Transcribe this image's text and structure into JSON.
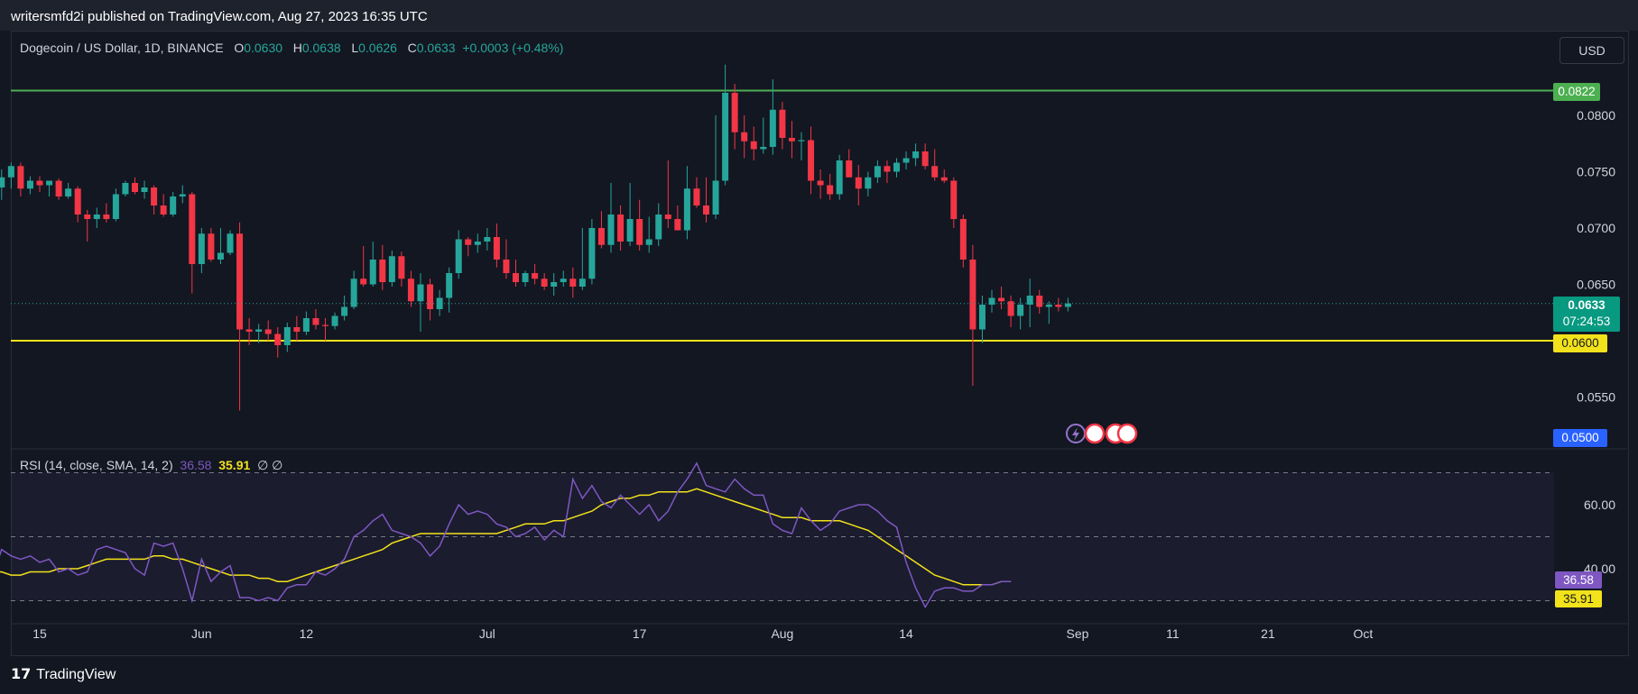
{
  "header": {
    "publisher": "writersmfd2i published on TradingView.com, Aug 27, 2023 16:35 UTC"
  },
  "legend": {
    "symbol": "Dogecoin / US Dollar, 1D, BINANCE",
    "o_label": "O",
    "o": "0.0630",
    "h_label": "H",
    "h": "0.0638",
    "l_label": "L",
    "l": "0.0626",
    "c_label": "C",
    "c": "0.0633",
    "change": "+0.0003 (+0.48%)"
  },
  "currency_button": "USD",
  "rsi_legend": {
    "label": "RSI (14, close, SMA, 14, 2)",
    "rsi": "36.58",
    "sma": "35.91",
    "extra": "∅  ∅"
  },
  "price_badges": {
    "resistance": "0.0822",
    "current": "0.0633",
    "countdown": "07:24:53",
    "support": "0.0600",
    "bottom": "0.0500"
  },
  "rsi_badges": {
    "rsi": "36.58",
    "sma": "35.91"
  },
  "footer": {
    "logo": "17",
    "brand": "TradingView"
  },
  "colors": {
    "up": "#26a69a",
    "down": "#f23645",
    "resistance": "#4caf50",
    "support": "#f2e21b",
    "rsi": "#7e57c2",
    "rsi_sma": "#f2e21b"
  },
  "chart_data": {
    "type": "candlestick",
    "symbol": "DOGEUSD",
    "interval": "1D",
    "y_ticks": [
      "0.0800",
      "0.0750",
      "0.0700",
      "0.0650",
      "0.0550"
    ],
    "x_ticks": [
      "15",
      "Jun",
      "12",
      "Jul",
      "17",
      "Aug",
      "14",
      "Sep",
      "11",
      "21",
      "Oct"
    ],
    "x_dates": [
      "2023-05-15",
      "2023-06-01",
      "2023-06-12",
      "2023-07-01",
      "2023-07-17",
      "2023-08-01",
      "2023-08-14",
      "2023-09-01",
      "2023-09-11",
      "2023-09-21",
      "2023-10-01"
    ],
    "horizontal_lines": [
      {
        "value": 0.0822,
        "color": "#4caf50"
      },
      {
        "value": 0.06,
        "color": "#f2e21b"
      }
    ],
    "candles": [
      [
        0.0728,
        0.0735,
        0.07,
        0.0725
      ],
      [
        0.0725,
        0.0738,
        0.0715,
        0.073
      ],
      [
        0.073,
        0.0735,
        0.0712,
        0.0718
      ],
      [
        0.0718,
        0.073,
        0.0715,
        0.0725
      ],
      [
        0.0725,
        0.0738,
        0.0718,
        0.072
      ],
      [
        0.072,
        0.0742,
        0.0716,
        0.0736
      ],
      [
        0.0736,
        0.0752,
        0.0725,
        0.0745
      ],
      [
        0.0745,
        0.0758,
        0.0735,
        0.0755
      ],
      [
        0.0755,
        0.0758,
        0.0728,
        0.0735
      ],
      [
        0.0735,
        0.0746,
        0.073,
        0.0742
      ],
      [
        0.0742,
        0.0746,
        0.0732,
        0.0738
      ],
      [
        0.0738,
        0.0742,
        0.0728,
        0.0742
      ],
      [
        0.0742,
        0.0744,
        0.0725,
        0.0728
      ],
      [
        0.0728,
        0.074,
        0.0726,
        0.0735
      ],
      [
        0.0735,
        0.0737,
        0.0705,
        0.0712
      ],
      [
        0.0712,
        0.0716,
        0.0688,
        0.0708
      ],
      [
        0.0708,
        0.0718,
        0.07,
        0.0712
      ],
      [
        0.0712,
        0.0722,
        0.0705,
        0.0708
      ],
      [
        0.0708,
        0.0735,
        0.0706,
        0.073
      ],
      [
        0.073,
        0.0742,
        0.0728,
        0.074
      ],
      [
        0.074,
        0.0745,
        0.073,
        0.0732
      ],
      [
        0.0732,
        0.0742,
        0.0726,
        0.0736
      ],
      [
        0.0736,
        0.0738,
        0.0712,
        0.072
      ],
      [
        0.072,
        0.073,
        0.071,
        0.0712
      ],
      [
        0.0712,
        0.0732,
        0.071,
        0.0728
      ],
      [
        0.0728,
        0.0738,
        0.0722,
        0.073
      ],
      [
        0.073,
        0.0732,
        0.0642,
        0.0668
      ],
      [
        0.0668,
        0.07,
        0.066,
        0.0695
      ],
      [
        0.0695,
        0.07,
        0.067,
        0.0672
      ],
      [
        0.0672,
        0.07,
        0.0668,
        0.0678
      ],
      [
        0.0678,
        0.0698,
        0.0676,
        0.0695
      ],
      [
        0.0695,
        0.0705,
        0.0538,
        0.061
      ],
      [
        0.061,
        0.062,
        0.0596,
        0.0608
      ],
      [
        0.0608,
        0.0615,
        0.0598,
        0.061
      ],
      [
        0.061,
        0.0618,
        0.06,
        0.0606
      ],
      [
        0.0606,
        0.0612,
        0.0585,
        0.0596
      ],
      [
        0.0596,
        0.0616,
        0.059,
        0.0612
      ],
      [
        0.0612,
        0.0622,
        0.06,
        0.0608
      ],
      [
        0.0608,
        0.0626,
        0.0605,
        0.062
      ],
      [
        0.062,
        0.0628,
        0.061,
        0.0614
      ],
      [
        0.0614,
        0.062,
        0.06,
        0.0613
      ],
      [
        0.0613,
        0.0625,
        0.061,
        0.0622
      ],
      [
        0.0622,
        0.064,
        0.0618,
        0.063
      ],
      [
        0.063,
        0.0662,
        0.0628,
        0.0655
      ],
      [
        0.0655,
        0.0684,
        0.0648,
        0.065
      ],
      [
        0.065,
        0.0688,
        0.0648,
        0.0672
      ],
      [
        0.0672,
        0.0685,
        0.0645,
        0.0652
      ],
      [
        0.0652,
        0.068,
        0.0648,
        0.0675
      ],
      [
        0.0675,
        0.0679,
        0.0648,
        0.0655
      ],
      [
        0.0655,
        0.0662,
        0.063,
        0.0635
      ],
      [
        0.0635,
        0.066,
        0.0608,
        0.065
      ],
      [
        0.065,
        0.0655,
        0.0618,
        0.0628
      ],
      [
        0.0628,
        0.0645,
        0.0622,
        0.0638
      ],
      [
        0.0638,
        0.0665,
        0.0625,
        0.066
      ],
      [
        0.066,
        0.0698,
        0.0655,
        0.069
      ],
      [
        0.069,
        0.0692,
        0.0675,
        0.0685
      ],
      [
        0.0685,
        0.0695,
        0.0678,
        0.0688
      ],
      [
        0.0688,
        0.07,
        0.068,
        0.0692
      ],
      [
        0.0692,
        0.0704,
        0.0665,
        0.0672
      ],
      [
        0.0672,
        0.069,
        0.0655,
        0.066
      ],
      [
        0.066,
        0.0672,
        0.0648,
        0.0652
      ],
      [
        0.0652,
        0.0662,
        0.0648,
        0.066
      ],
      [
        0.066,
        0.0668,
        0.065,
        0.0655
      ],
      [
        0.0655,
        0.066,
        0.0645,
        0.0648
      ],
      [
        0.0648,
        0.066,
        0.064,
        0.0652
      ],
      [
        0.0652,
        0.0662,
        0.0648,
        0.0655
      ],
      [
        0.0655,
        0.0665,
        0.0638,
        0.0648
      ],
      [
        0.0648,
        0.07,
        0.0645,
        0.0655
      ],
      [
        0.0655,
        0.0708,
        0.065,
        0.07
      ],
      [
        0.07,
        0.0715,
        0.0682,
        0.0685
      ],
      [
        0.0685,
        0.074,
        0.0678,
        0.0712
      ],
      [
        0.0712,
        0.072,
        0.068,
        0.0688
      ],
      [
        0.0688,
        0.074,
        0.0684,
        0.0708
      ],
      [
        0.0708,
        0.0725,
        0.068,
        0.0685
      ],
      [
        0.0685,
        0.071,
        0.0678,
        0.069
      ],
      [
        0.069,
        0.0722,
        0.0684,
        0.0712
      ],
      [
        0.0712,
        0.076,
        0.07,
        0.0708
      ],
      [
        0.0708,
        0.072,
        0.0698,
        0.0698
      ],
      [
        0.0698,
        0.0755,
        0.069,
        0.0735
      ],
      [
        0.0735,
        0.0745,
        0.0718,
        0.072
      ],
      [
        0.072,
        0.0745,
        0.0705,
        0.0712
      ],
      [
        0.0712,
        0.08,
        0.0708,
        0.0742
      ],
      [
        0.0742,
        0.0845,
        0.0738,
        0.082
      ],
      [
        0.082,
        0.0828,
        0.077,
        0.0785
      ],
      [
        0.0785,
        0.08,
        0.0762,
        0.0777
      ],
      [
        0.0777,
        0.079,
        0.076,
        0.077
      ],
      [
        0.077,
        0.0798,
        0.0766,
        0.0772
      ],
      [
        0.0772,
        0.0832,
        0.0765,
        0.0805
      ],
      [
        0.0805,
        0.0812,
        0.077,
        0.078
      ],
      [
        0.078,
        0.0795,
        0.0762,
        0.0777
      ],
      [
        0.0777,
        0.0785,
        0.076,
        0.0778
      ],
      [
        0.0778,
        0.079,
        0.073,
        0.0742
      ],
      [
        0.0742,
        0.0752,
        0.0726,
        0.0738
      ],
      [
        0.0738,
        0.0748,
        0.0725,
        0.073
      ],
      [
        0.073,
        0.0765,
        0.0725,
        0.076
      ],
      [
        0.076,
        0.077,
        0.0745,
        0.0745
      ],
      [
        0.0745,
        0.0756,
        0.072,
        0.0735
      ],
      [
        0.0735,
        0.075,
        0.0728,
        0.0745
      ],
      [
        0.0745,
        0.076,
        0.074,
        0.0755
      ],
      [
        0.0755,
        0.076,
        0.074,
        0.075
      ],
      [
        0.075,
        0.0762,
        0.0745,
        0.0758
      ],
      [
        0.0758,
        0.0768,
        0.0752,
        0.0762
      ],
      [
        0.0762,
        0.0775,
        0.0755,
        0.0768
      ],
      [
        0.0768,
        0.0775,
        0.0752,
        0.0755
      ],
      [
        0.0755,
        0.077,
        0.0742,
        0.0745
      ],
      [
        0.0745,
        0.0752,
        0.074,
        0.0742
      ],
      [
        0.0742,
        0.0745,
        0.07,
        0.0708
      ],
      [
        0.0708,
        0.0712,
        0.0665,
        0.0672
      ],
      [
        0.0672,
        0.0685,
        0.056,
        0.061
      ],
      [
        0.061,
        0.064,
        0.0598,
        0.0632
      ],
      [
        0.0632,
        0.0645,
        0.0625,
        0.0638
      ],
      [
        0.0638,
        0.0648,
        0.0628,
        0.0635
      ],
      [
        0.0635,
        0.064,
        0.0612,
        0.0622
      ],
      [
        0.0622,
        0.0638,
        0.061,
        0.0632
      ],
      [
        0.0632,
        0.0655,
        0.0612,
        0.064
      ],
      [
        0.064,
        0.0645,
        0.0624,
        0.063
      ],
      [
        0.063,
        0.0635,
        0.0615,
        0.0632
      ],
      [
        0.0632,
        0.0638,
        0.0626,
        0.063
      ],
      [
        0.063,
        0.0638,
        0.0626,
        0.0633
      ]
    ],
    "rsi": [
      44,
      42,
      37,
      36,
      38,
      37,
      46,
      44,
      43,
      44,
      42,
      43,
      39,
      40,
      38,
      39,
      46,
      47,
      46,
      45,
      40,
      38,
      48,
      47,
      48,
      40,
      30,
      43,
      36,
      39,
      41,
      31,
      31,
      30,
      31,
      30,
      34,
      35,
      35,
      39,
      38,
      40,
      43,
      50,
      52,
      55,
      57,
      52,
      51,
      50,
      48,
      44,
      47,
      54,
      60,
      57,
      58,
      57,
      54,
      53,
      50,
      51,
      53,
      49,
      52,
      50,
      68,
      62,
      66,
      61,
      59,
      63,
      60,
      57,
      60,
      55,
      58,
      64,
      68,
      73,
      66,
      65,
      64,
      68,
      65,
      63,
      63,
      54,
      52,
      51,
      59,
      55,
      52,
      54,
      58,
      59,
      60,
      60,
      58,
      55,
      53,
      42,
      34,
      28,
      33,
      34,
      34,
      33,
      33,
      35,
      35,
      36,
      36
    ],
    "rsi_sma": [
      41,
      40,
      39,
      39,
      39,
      39,
      39,
      38,
      38,
      39,
      39,
      39,
      40,
      40,
      40,
      41,
      42,
      43,
      43,
      43,
      43,
      43,
      44,
      44,
      43,
      43,
      42,
      41,
      40,
      39,
      38,
      38,
      38,
      37,
      37,
      36,
      36,
      37,
      38,
      39,
      40,
      41,
      42,
      43,
      44,
      45,
      46,
      48,
      49,
      50,
      51,
      51,
      51,
      51,
      51,
      51,
      51,
      51,
      51,
      52,
      53,
      54,
      54,
      54,
      55,
      55,
      56,
      57,
      58,
      60,
      61,
      62,
      62,
      63,
      63,
      64,
      64,
      64,
      64,
      65,
      64,
      63,
      62,
      61,
      60,
      59,
      58,
      57,
      56,
      56,
      56,
      55,
      55,
      55,
      55,
      54,
      53,
      52,
      50,
      48,
      46,
      44,
      42,
      40,
      38,
      37,
      36,
      35,
      35,
      35,
      35,
      36,
      36
    ],
    "rsi_ticks": [
      "60.00",
      "40.00"
    ],
    "rsi_levels": [
      70,
      50,
      30
    ]
  }
}
